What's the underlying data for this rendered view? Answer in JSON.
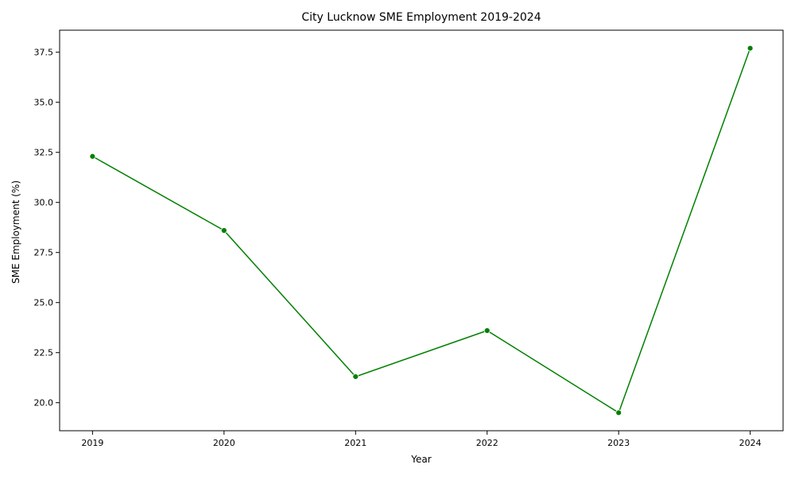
{
  "chart_data": {
    "type": "line",
    "title": "City Lucknow SME Employment 2019-2024",
    "xlabel": "Year",
    "ylabel": "SME Employment (%)",
    "x": [
      2019,
      2020,
      2021,
      2022,
      2023,
      2024
    ],
    "series": [
      {
        "values": [
          32.3,
          28.6,
          21.3,
          23.6,
          19.5,
          37.7
        ],
        "color": "#008000",
        "marker": "circle"
      }
    ],
    "xlim": [
      2018.75,
      2024.25
    ],
    "ylim": [
      18.6,
      38.6
    ],
    "yticks": [
      20.0,
      22.5,
      25.0,
      27.5,
      30.0,
      32.5,
      35.0,
      37.5
    ],
    "ytick_labels": [
      "20.0",
      "22.5",
      "25.0",
      "27.5",
      "30.0",
      "32.5",
      "35.0",
      "37.5"
    ],
    "xtick_labels": [
      "2019",
      "2020",
      "2021",
      "2022",
      "2023",
      "2024"
    ],
    "grid": false,
    "legend": false
  }
}
